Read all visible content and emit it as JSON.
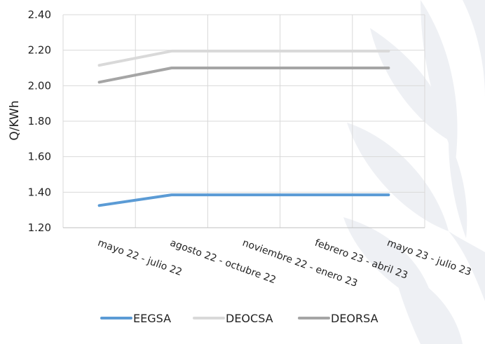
{
  "chart_data": {
    "type": "line",
    "ylabel": "Q/KWh",
    "xlabel": "",
    "ylim": [
      1.2,
      2.4
    ],
    "yticks": [
      "1.20",
      "1.40",
      "1.60",
      "1.80",
      "2.00",
      "2.20",
      "2.40"
    ],
    "categories": [
      "mayo 22 - julio 22",
      "agosto 22 - octubre 22",
      "noviembre 22 - enero 23",
      "febrero 23 - abril 23",
      "mayo 23 - julio 23"
    ],
    "series": [
      {
        "name": "EEGSA",
        "color": "#5b9bd5",
        "values": [
          1.325,
          1.385,
          1.385,
          1.385,
          1.385
        ]
      },
      {
        "name": "DEOCSA",
        "color": "#d9d9d9",
        "values": [
          2.115,
          2.195,
          2.195,
          2.195,
          2.195
        ]
      },
      {
        "name": "DEORSA",
        "color": "#a5a5a5",
        "values": [
          2.02,
          2.1,
          2.1,
          2.1,
          2.1
        ]
      }
    ],
    "grid": true,
    "legend": "bottom"
  }
}
